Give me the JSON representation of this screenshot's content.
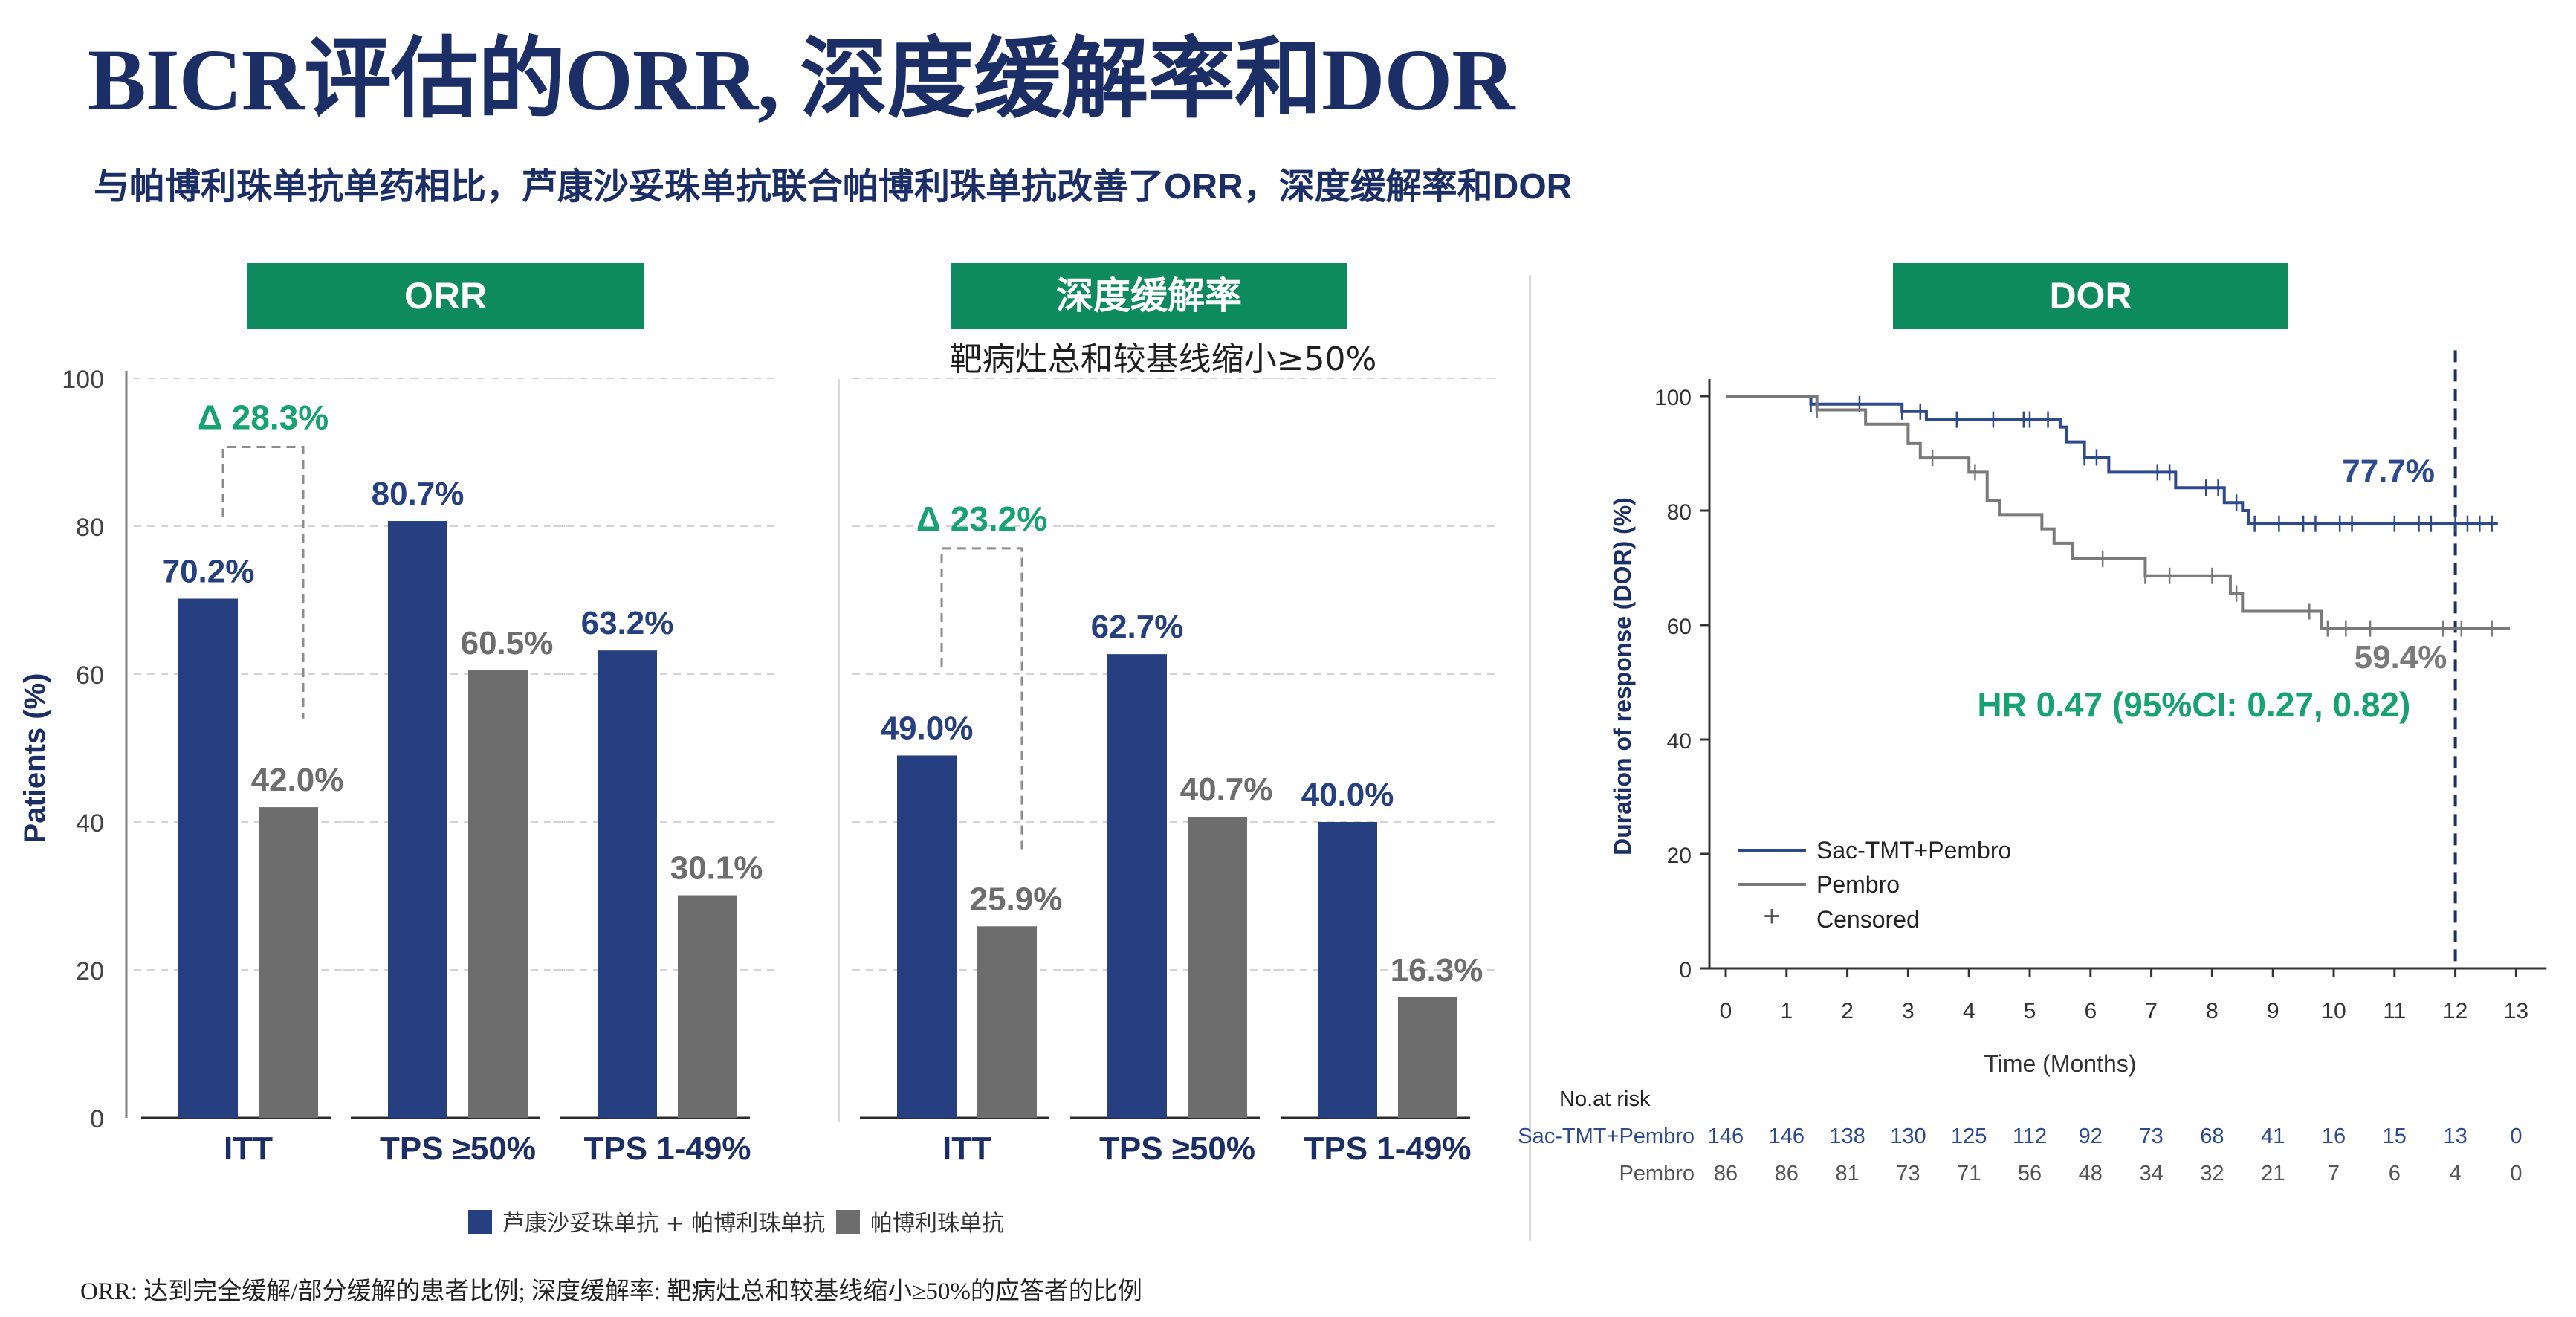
{
  "title": "BICR评估的ORR, 深度缓解率和DOR",
  "subtitle": "与帕博利珠单抗单药相比，芦康沙妥珠单抗联合帕博利珠单抗改善了ORR，深度缓解率和DOR",
  "panels": {
    "orr_header": "ORR",
    "deep_header": "深度缓解率",
    "deep_caption": "靶病灶总和较基线缩小≥50%",
    "dor_header": "DOR"
  },
  "legend": {
    "combo": "芦康沙妥珠单抗 + 帕博利珠单抗",
    "mono": "帕博利珠单抗"
  },
  "footnote": "ORR: 达到完全缓解/部分缓解的患者比例; 深度缓解率:  靶病灶总和较基线缩小≥50%的应答者的比例",
  "colors": {
    "combo": "#253f80",
    "mono": "#6d6d6d",
    "header_green": "#0e8a5f",
    "delta_green": "#17a272",
    "km_combo": "#2c4a8c",
    "km_mono": "#7a7a7a"
  },
  "chart_data": [
    {
      "type": "bar",
      "panel": "ORR",
      "ylabel": "Patients (%)",
      "ylim": [
        0,
        100
      ],
      "yticks": [
        0,
        20,
        40,
        60,
        80,
        100
      ],
      "grid": true,
      "categories": [
        "ITT",
        "TPS ≥50%",
        "TPS 1-49%"
      ],
      "series": [
        {
          "name": "芦康沙妥珠单抗 + 帕博利珠单抗",
          "values": [
            70.2,
            80.7,
            63.2
          ],
          "labels": [
            "70.2%",
            "80.7%",
            "63.2%"
          ]
        },
        {
          "name": "帕博利珠单抗",
          "values": [
            42.0,
            60.5,
            30.1
          ],
          "labels": [
            "42.0%",
            "60.5%",
            "30.1%"
          ]
        }
      ],
      "annotations": [
        {
          "category": "ITT",
          "text": "Δ 28.3%"
        }
      ]
    },
    {
      "type": "bar",
      "panel": "深度缓解率",
      "ylim": [
        0,
        100
      ],
      "grid": true,
      "categories": [
        "ITT",
        "TPS ≥50%",
        "TPS 1-49%"
      ],
      "series": [
        {
          "name": "芦康沙妥珠单抗 + 帕博利珠单抗",
          "values": [
            49.0,
            62.7,
            40.0
          ],
          "labels": [
            "49.0%",
            "62.7%",
            "40.0%"
          ]
        },
        {
          "name": "帕博利珠单抗",
          "values": [
            25.9,
            40.7,
            16.3
          ],
          "labels": [
            "25.9%",
            "40.7%",
            "16.3%"
          ]
        }
      ],
      "annotations": [
        {
          "category": "ITT",
          "text": "Δ 23.2%"
        }
      ]
    },
    {
      "type": "line",
      "panel": "DOR",
      "xlabel": "Time (Months)",
      "ylabel": "Duration of response (DOR)  (%)",
      "xlim": [
        0,
        13
      ],
      "ylim": [
        0,
        100
      ],
      "xticks": [
        0,
        1,
        2,
        3,
        4,
        5,
        6,
        7,
        8,
        9,
        10,
        11,
        12,
        13
      ],
      "yticks": [
        0,
        20,
        40,
        60,
        80,
        100
      ],
      "reference_x": 12,
      "series": [
        {
          "name": "Sac-TMT+Pembro",
          "steps": [
            [
              0,
              100
            ],
            [
              1.4,
              98.6
            ],
            [
              2.9,
              97.3
            ],
            [
              3.3,
              95.9
            ],
            [
              5.5,
              94.6
            ],
            [
              5.6,
              92.0
            ],
            [
              5.9,
              89.3
            ],
            [
              6.3,
              86.7
            ],
            [
              7.4,
              84.0
            ],
            [
              8.2,
              81.4
            ],
            [
              8.5,
              80.0
            ],
            [
              8.6,
              77.7
            ],
            [
              12.7,
              77.7
            ]
          ],
          "censored": [
            1.4,
            1.5,
            2.2,
            2.9,
            3.2,
            3.8,
            4.4,
            4.9,
            5.0,
            5.3,
            5.9,
            6.1,
            7.1,
            7.3,
            7.9,
            8.1,
            8.4,
            8.7,
            9.1,
            9.5,
            9.7,
            10.1,
            10.3,
            11.0,
            11.4,
            11.6,
            12.0,
            12.2,
            12.4,
            12.6
          ],
          "label": "77.7%"
        },
        {
          "name": "Pembro",
          "steps": [
            [
              0,
              100
            ],
            [
              1.5,
              97.6
            ],
            [
              2.3,
              95.1
            ],
            [
              3.0,
              91.7
            ],
            [
              3.2,
              89.2
            ],
            [
              4.0,
              86.7
            ],
            [
              4.3,
              81.8
            ],
            [
              4.5,
              79.3
            ],
            [
              5.2,
              76.8
            ],
            [
              5.4,
              74.3
            ],
            [
              5.7,
              71.6
            ],
            [
              6.9,
              68.6
            ],
            [
              8.3,
              65.5
            ],
            [
              8.5,
              62.4
            ],
            [
              9.8,
              59.4
            ],
            [
              12.9,
              59.4
            ]
          ],
          "censored": [
            1.5,
            3.4,
            4.1,
            6.2,
            6.9,
            7.3,
            8.0,
            8.4,
            9.6,
            9.9,
            10.2,
            10.6,
            11.8,
            12.1,
            12.6
          ],
          "label": "59.4%"
        }
      ],
      "legend": [
        "Sac-TMT+Pembro",
        "Pembro",
        "Censored"
      ],
      "legend_position": "bottom-left",
      "annotation": "HR 0.47 (95%CI: 0.27, 0.82)",
      "risk_table": {
        "title": "No.at risk",
        "rows": [
          {
            "label": "Sac-TMT+Pembro",
            "values": [
              146,
              146,
              138,
              130,
              125,
              112,
              92,
              73,
              68,
              41,
              16,
              15,
              13,
              0
            ]
          },
          {
            "label": "Pembro",
            "values": [
              86,
              86,
              81,
              73,
              71,
              56,
              48,
              34,
              32,
              21,
              7,
              6,
              4,
              0
            ]
          }
        ]
      }
    }
  ]
}
